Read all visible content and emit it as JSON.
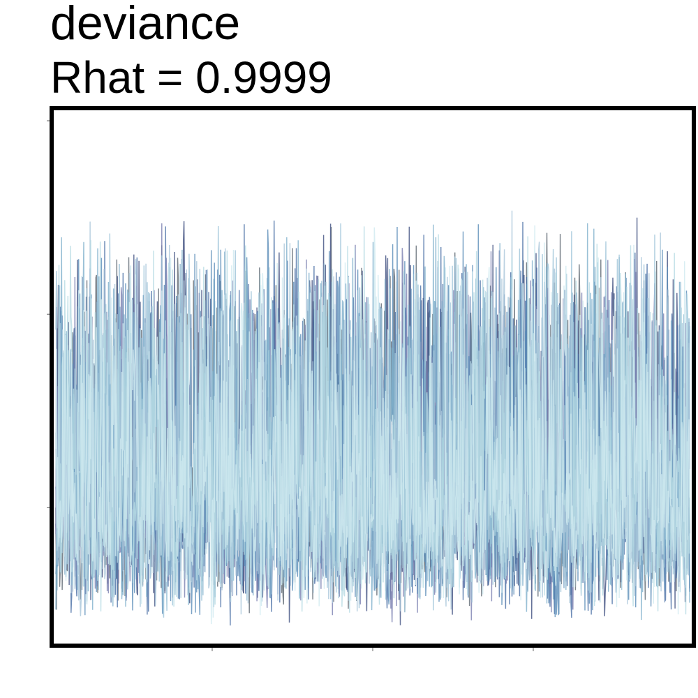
{
  "chart_data": {
    "type": "line",
    "title": "deviance",
    "subtitle": "Rhat = 0.9999",
    "xlabel": "",
    "ylabel": "",
    "x_ticks": [
      "",
      "",
      ""
    ],
    "y_ticks": [
      "",
      "",
      ""
    ],
    "grid": false,
    "legend": "none",
    "n_chains": 10,
    "n_iterations": 1000,
    "y_range": [
      0,
      1
    ],
    "series_colors": [
      "#5d6670",
      "#3f4f7f",
      "#4a6fa5",
      "#7b7fb0",
      "#5a8cb8",
      "#7fb0cc",
      "#9cc3d8",
      "#a9c5d9",
      "#b7dbe3",
      "#cfeaf0"
    ],
    "series_opacity": 0.8,
    "frame_color": "#000000"
  }
}
